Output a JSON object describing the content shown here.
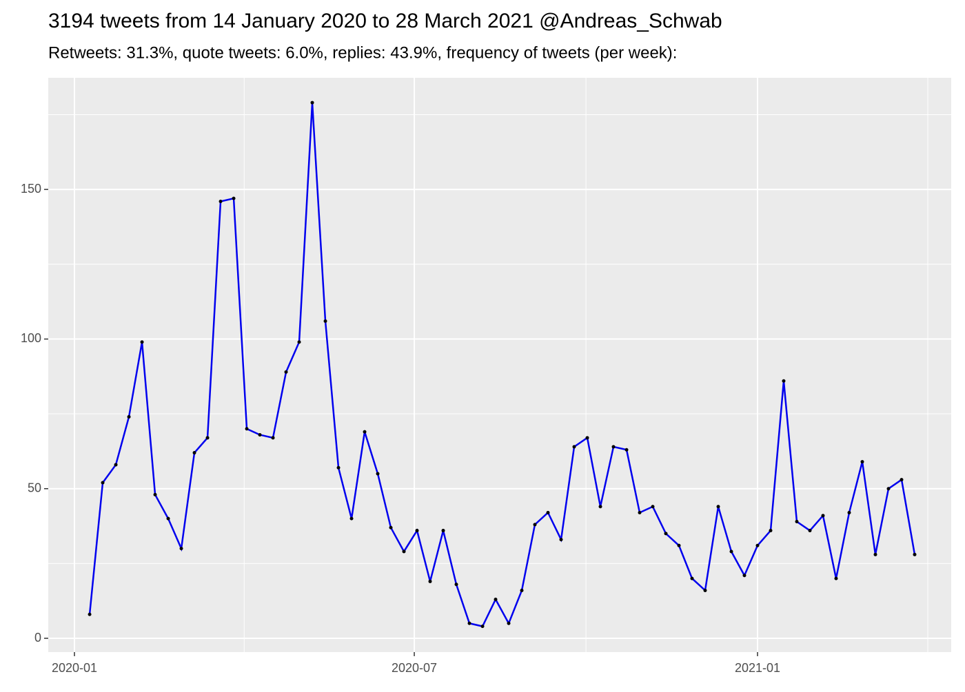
{
  "chart_data": {
    "type": "line",
    "title": "3194 tweets from 14 January 2020 to 28 March 2021 @Andreas_Schwab",
    "subtitle": "Retweets: 31.3%, quote tweets: 6.0%, replies: 43.9%, frequency of tweets (per week):",
    "categories": [
      null,
      null,
      null,
      null,
      null,
      null,
      null,
      null,
      null,
      null,
      null,
      null,
      null,
      null,
      null,
      null,
      null,
      null,
      null,
      null,
      null,
      null,
      null,
      null,
      null,
      null,
      null,
      null,
      null,
      null,
      null,
      null,
      null,
      null,
      null,
      null,
      null,
      null,
      null,
      null,
      null,
      null,
      null,
      null,
      null,
      null,
      null,
      null,
      null,
      null,
      null,
      null,
      null,
      null,
      null,
      null,
      null,
      null,
      null,
      null,
      null,
      null,
      null,
      null
    ],
    "series": [
      {
        "color": "#0000ee",
        "marker_color": "#000000",
        "values": [
          8,
          52,
          58,
          74,
          99,
          48,
          40,
          30,
          62,
          67,
          146,
          147,
          70,
          68,
          67,
          89,
          99,
          179,
          106,
          57,
          40,
          69,
          55,
          37,
          29,
          36,
          19,
          36,
          18,
          5,
          4,
          13,
          5,
          16,
          38,
          42,
          33,
          64,
          67,
          44,
          64,
          63,
          42,
          44,
          35,
          31,
          20,
          16,
          44,
          29,
          21,
          31,
          36,
          86,
          39,
          36,
          41,
          20,
          42,
          59,
          28,
          50,
          53,
          28
        ]
      }
    ],
    "xlim": [
      -3.16,
      65.79
    ],
    "xticks": [
      {
        "value": -1.16,
        "label": "2020-01"
      },
      {
        "value": 24.79,
        "label": "2020-07"
      },
      {
        "value": 51.0,
        "label": "2021-01"
      }
    ],
    "xminor": [
      11.8,
      37.9,
      64.0
    ],
    "ylim": [
      -4.6,
      187.3
    ],
    "yticks": [
      0,
      50,
      100,
      150
    ],
    "yminor": [
      25,
      75,
      125,
      175
    ],
    "grid": true
  }
}
